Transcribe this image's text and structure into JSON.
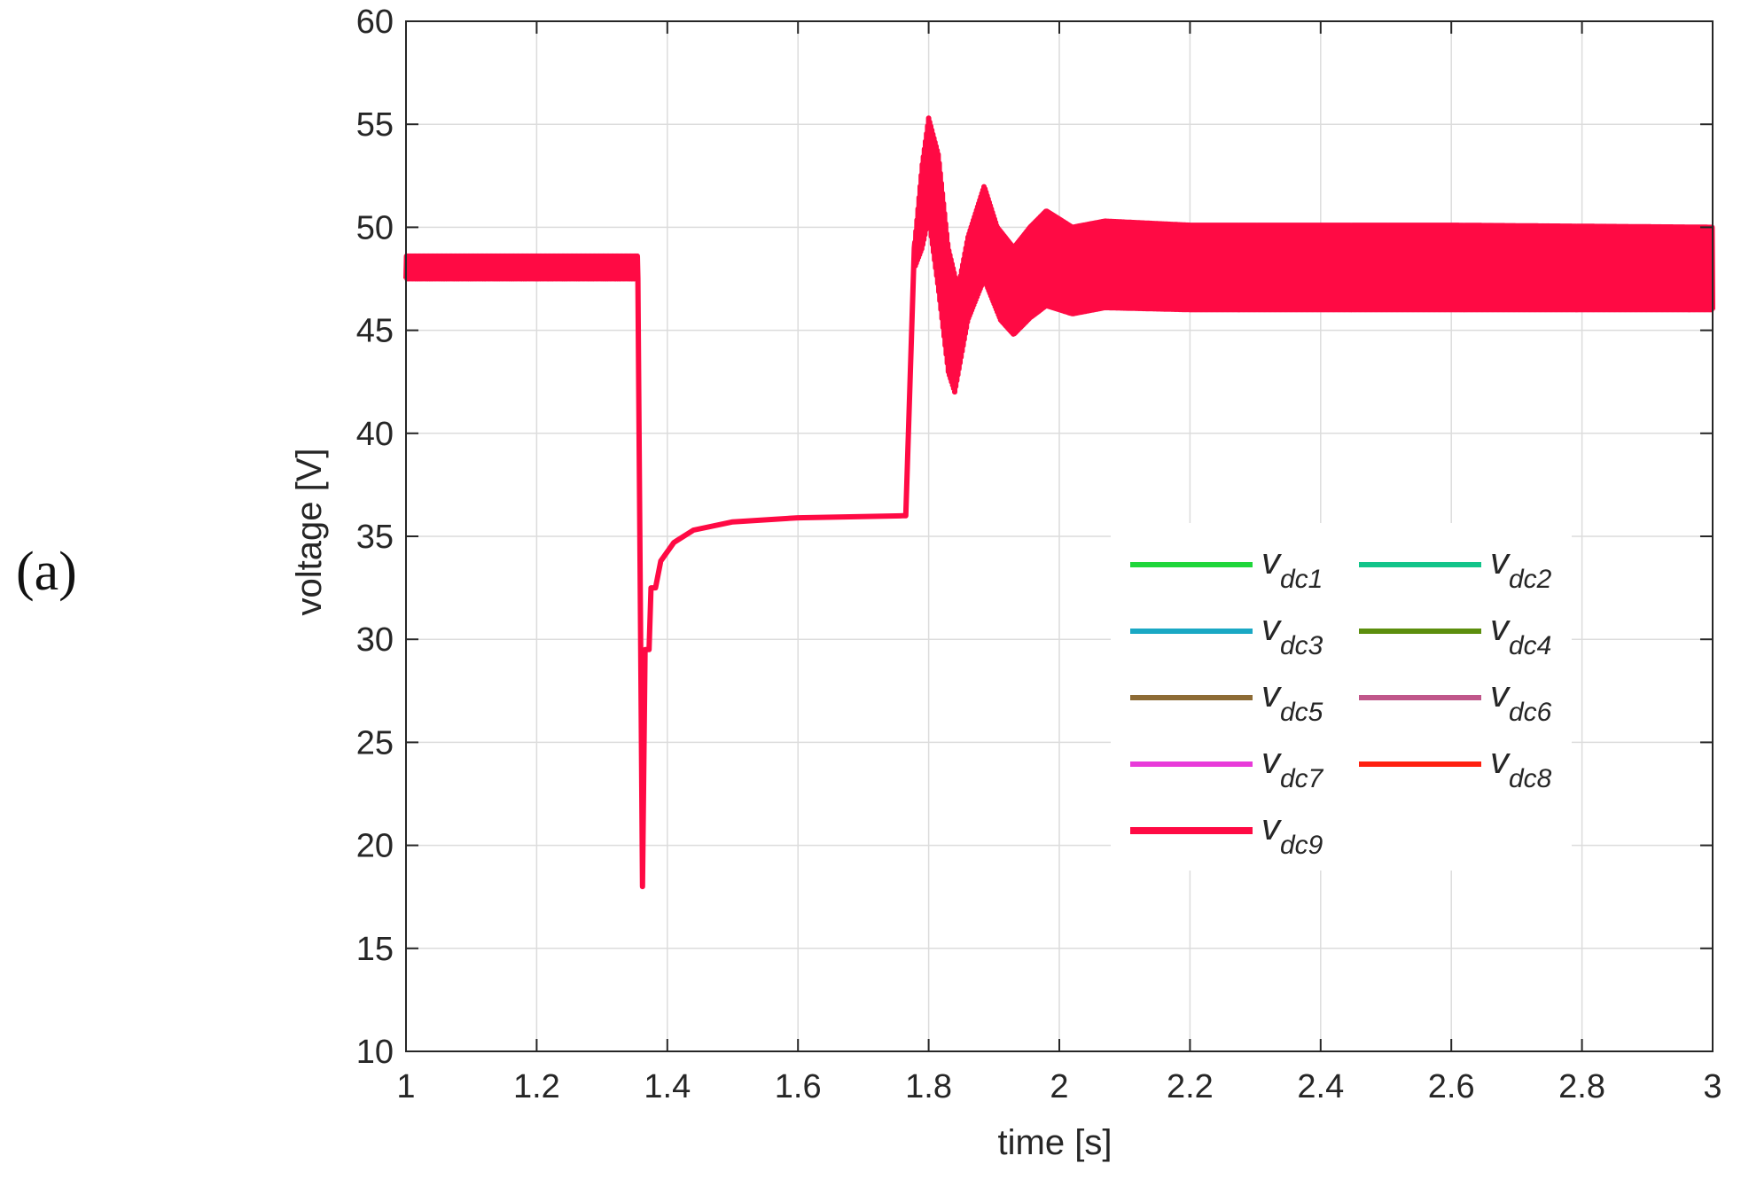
{
  "panel_label": "(a)",
  "chart_data": {
    "type": "line",
    "title": "",
    "xlabel": "time [s]",
    "ylabel": "voltage [V]",
    "xlim": [
      1,
      3
    ],
    "ylim": [
      10,
      60
    ],
    "xticks": [
      1,
      1.2,
      1.4,
      1.6,
      1.8,
      2,
      2.2,
      2.4,
      2.6,
      2.8,
      3
    ],
    "xtick_labels": [
      "1",
      "1.2",
      "1.4",
      "1.6",
      "1.8",
      "2",
      "2.2",
      "2.4",
      "2.6",
      "2.8",
      "3"
    ],
    "yticks": [
      10,
      15,
      20,
      25,
      30,
      35,
      40,
      45,
      50,
      55,
      60
    ],
    "ytick_labels": [
      "10",
      "15",
      "20",
      "25",
      "30",
      "35",
      "40",
      "45",
      "50",
      "55",
      "60"
    ],
    "grid": true,
    "legend_position": "lower-right",
    "series": [
      {
        "name": "dc1",
        "color": "#1fd63a"
      },
      {
        "name": "dc2",
        "color": "#12c48a"
      },
      {
        "name": "dc3",
        "color": "#1aa8c4"
      },
      {
        "name": "dc4",
        "color": "#5c8e0e"
      },
      {
        "name": "dc5",
        "color": "#8d6b35"
      },
      {
        "name": "dc6",
        "color": "#c0568a"
      },
      {
        "name": "dc7",
        "color": "#e83ad9"
      },
      {
        "name": "dc8",
        "color": "#ff2010"
      },
      {
        "name": "dc9",
        "color": "#ff0a44"
      }
    ],
    "waveform": {
      "steady_before": {
        "t": [
          1.0,
          1.355
        ],
        "min": 47.5,
        "max": 48.6
      },
      "dip": {
        "t": 1.362,
        "min": 18.0
      },
      "recovery": [
        [
          1.366,
          29.5
        ],
        [
          1.372,
          29.5
        ],
        [
          1.375,
          32.5
        ],
        [
          1.382,
          32.5
        ],
        [
          1.39,
          33.8
        ],
        [
          1.41,
          34.7
        ],
        [
          1.44,
          35.3
        ],
        [
          1.5,
          35.7
        ],
        [
          1.6,
          35.9
        ],
        [
          1.76,
          36.0
        ]
      ],
      "rise": [
        [
          1.765,
          36.0
        ],
        [
          1.778,
          49.0
        ]
      ],
      "envelope_upper": [
        [
          1.778,
          49.0
        ],
        [
          1.79,
          53.0
        ],
        [
          1.8,
          55.3
        ],
        [
          1.815,
          53.5
        ],
        [
          1.83,
          49.0
        ],
        [
          1.845,
          47.0
        ],
        [
          1.86,
          49.5
        ],
        [
          1.885,
          52.0
        ],
        [
          1.905,
          50.0
        ],
        [
          1.93,
          49.0
        ],
        [
          1.955,
          50.0
        ],
        [
          1.98,
          50.8
        ],
        [
          2.02,
          50.0
        ],
        [
          2.07,
          50.3
        ],
        [
          2.2,
          50.1
        ],
        [
          2.6,
          50.1
        ],
        [
          3.0,
          50.0
        ]
      ],
      "envelope_lower": [
        [
          1.778,
          48.0
        ],
        [
          1.79,
          49.0
        ],
        [
          1.8,
          50.5
        ],
        [
          1.815,
          47.0
        ],
        [
          1.83,
          43.0
        ],
        [
          1.84,
          42.0
        ],
        [
          1.86,
          45.5
        ],
        [
          1.885,
          47.5
        ],
        [
          1.91,
          45.5
        ],
        [
          1.93,
          44.8
        ],
        [
          1.955,
          45.6
        ],
        [
          1.98,
          46.2
        ],
        [
          2.02,
          45.8
        ],
        [
          2.07,
          46.1
        ],
        [
          2.2,
          46.0
        ],
        [
          2.6,
          46.0
        ],
        [
          3.0,
          46.0
        ]
      ]
    }
  }
}
